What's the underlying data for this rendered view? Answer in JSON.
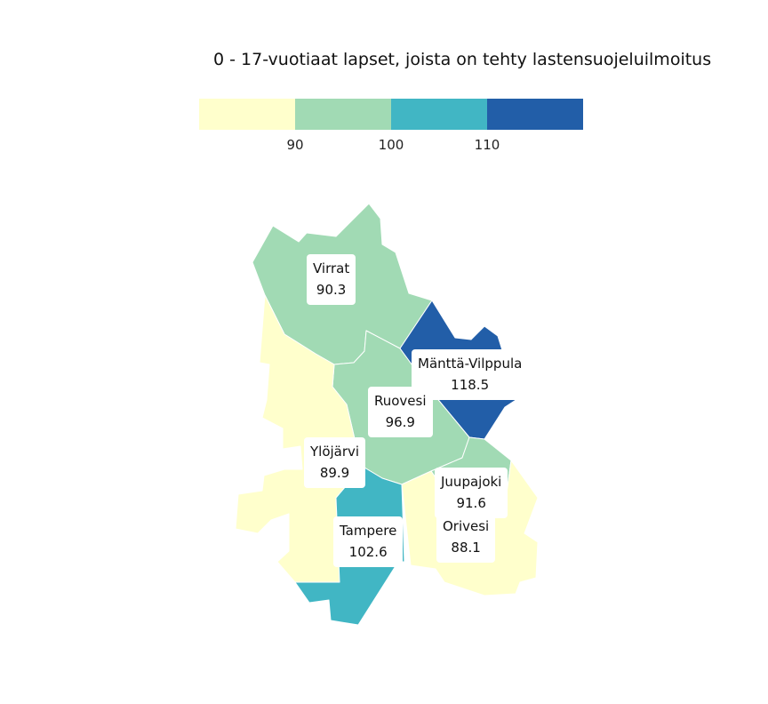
{
  "title": "0 - 17-vuotiaat lapset, joista on tehty lastensuojeluilmoitus",
  "legend": {
    "colors": [
      "#ffffcc",
      "#a1dab4",
      "#41b6c4",
      "#225ea8"
    ],
    "ticks": [
      "90",
      "100",
      "110"
    ]
  },
  "regions": [
    {
      "name": "Virrat",
      "value": "90.3",
      "color": "#a1dab4"
    },
    {
      "name": "Mänttä-Vilppula",
      "value": "118.5",
      "color": "#225ea8"
    },
    {
      "name": "Ruovesi",
      "value": "96.9",
      "color": "#a1dab4"
    },
    {
      "name": "Ylöjärvi",
      "value": "89.9",
      "color": "#ffffcc"
    },
    {
      "name": "Juupajoki",
      "value": "91.6",
      "color": "#a1dab4"
    },
    {
      "name": "Orivesi",
      "value": "88.1",
      "color": "#ffffcc"
    },
    {
      "name": "Tampere",
      "value": "102.6",
      "color": "#41b6c4"
    }
  ]
}
